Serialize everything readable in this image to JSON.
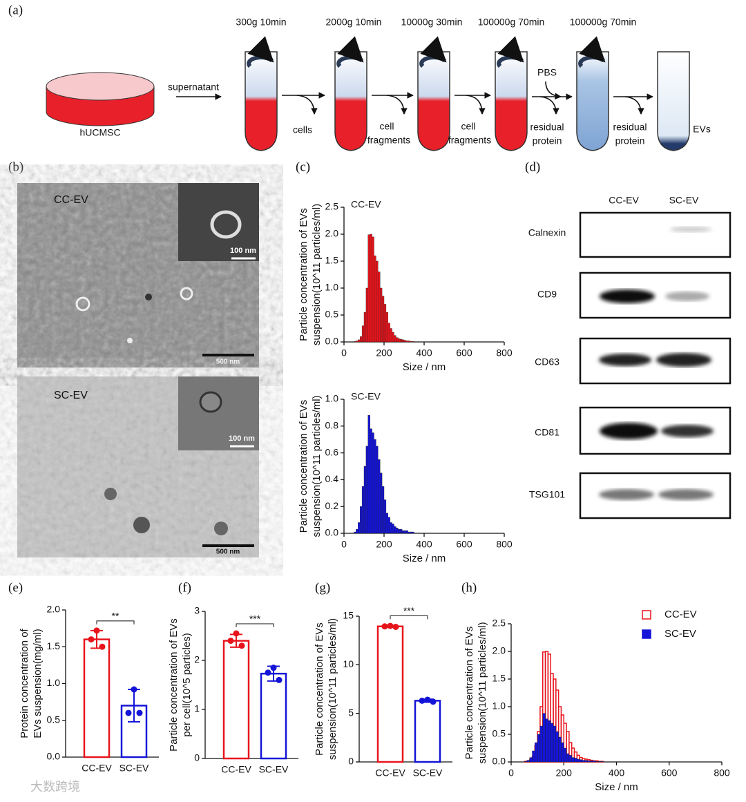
{
  "panel_labels": [
    "(a)",
    "(b)",
    "(c)",
    "(d)",
    "(e)",
    "(f)",
    "(g)",
    "(h)"
  ],
  "diagram": {
    "source": "hUCMSC",
    "transfer": "supernatant",
    "steps": [
      "300g 10min",
      "2000g 10min",
      "10000g 30min",
      "100000g 70min",
      "100000g 70min"
    ],
    "added": "PBS",
    "removed": [
      [
        "cells"
      ],
      [
        "cell",
        "fragments"
      ],
      [
        "cell",
        "fragments"
      ],
      [
        "residual",
        "protein"
      ],
      [
        "residual",
        "protein"
      ]
    ],
    "product": "EVs"
  },
  "tem": [
    {
      "name": "CC-EV",
      "inset_scale": "100 nm",
      "scale": "500 nm"
    },
    {
      "name": "SC-EV",
      "inset_scale": "100 nm",
      "scale": "500 nm"
    }
  ],
  "western_blot": {
    "columns": [
      "CC-EV",
      "SC-EV"
    ],
    "rows": [
      "Calnexin",
      "CD9",
      "CD63",
      "CD81",
      "TSG101"
    ]
  },
  "watermark": "大数跨境",
  "chart_data": [
    {
      "type": "histogram",
      "ylabel": [
        "Particle concentration of EVs",
        "suspension(10^11 particles/ml)"
      ],
      "xlabel": "Size / nm",
      "bins": [
        50,
        60,
        70,
        80,
        90,
        100,
        110,
        120,
        130,
        140,
        150,
        160,
        170,
        180,
        190,
        200,
        210,
        220,
        230,
        240,
        250,
        260,
        270,
        280,
        290,
        300,
        310,
        320,
        330,
        340,
        350
      ],
      "series": [
        {
          "name": "CC-EV",
          "color": "#e8141c",
          "fill": true,
          "values": [
            0.01,
            0.02,
            0.04,
            0.1,
            0.3,
            0.55,
            1.0,
            1.99,
            2.0,
            1.95,
            1.6,
            1.5,
            1.3,
            1.0,
            0.85,
            0.7,
            0.55,
            0.35,
            0.25,
            0.18,
            0.12,
            0.08,
            0.06,
            0.05,
            0.04,
            0.03,
            0.02,
            0.02,
            0.01,
            0.01
          ]
        }
      ],
      "xlim": [
        0,
        800
      ],
      "xticks": [
        0,
        200,
        400,
        600,
        800
      ],
      "ylim": [
        0,
        2.5
      ],
      "yticks": [
        {
          "value": 0,
          "label": "0.0"
        },
        0.5,
        {
          "value": 1,
          "label": "1.0"
        },
        1.5,
        {
          "value": 2,
          "label": "2.0"
        },
        2.5
      ]
    },
    {
      "type": "histogram",
      "ylabel": [
        "Particle concentration of EVs",
        "suspension(10^11 particles/ml)"
      ],
      "xlabel": "Size / nm",
      "bins": [
        50,
        60,
        70,
        80,
        90,
        100,
        110,
        120,
        130,
        140,
        150,
        160,
        170,
        180,
        190,
        200,
        210,
        220,
        230,
        240,
        250,
        260,
        270,
        280,
        290,
        300,
        310,
        320,
        330,
        340,
        350
      ],
      "series": [
        {
          "name": "SC-EV",
          "color": "#1414d8",
          "fill": true,
          "values": [
            0.01,
            0.03,
            0.08,
            0.2,
            0.35,
            0.5,
            0.65,
            0.88,
            0.78,
            0.75,
            0.7,
            0.65,
            0.55,
            0.45,
            0.35,
            0.25,
            0.15,
            0.12,
            0.08,
            0.07,
            0.05,
            0.04,
            0.03,
            0.03,
            0.02,
            0.02,
            0.02,
            0.01,
            0.01,
            0.01
          ]
        }
      ],
      "xlim": [
        0,
        800
      ],
      "xticks": [
        0,
        200,
        400,
        600,
        800
      ],
      "ylim": [
        0,
        1
      ],
      "yticks": [
        {
          "value": 0,
          "label": "0.0"
        },
        0.2,
        0.4,
        0.6,
        0.8,
        {
          "value": 1,
          "label": "1.0"
        }
      ]
    },
    {
      "type": "bar_dot",
      "ylabel": [
        "Protein concentration of",
        "EVs suspension(mg/ml)"
      ],
      "categories": [
        "CC-EV",
        "SC-EV"
      ],
      "colors": [
        "#e8141c",
        "#1414d8"
      ],
      "values": [
        1.6,
        0.7
      ],
      "errors": [
        0.12,
        0.22
      ],
      "points": [
        [
          1.72,
          1.6,
          1.5
        ],
        [
          0.92,
          0.6,
          0.6
        ]
      ],
      "significance": "**",
      "ylim": [
        0,
        2
      ],
      "yticks": [
        {
          "value": 0,
          "label": "0.0"
        },
        0.5,
        {
          "value": 1,
          "label": "1.0"
        },
        1.5,
        {
          "value": 2,
          "label": "2.0"
        }
      ]
    },
    {
      "type": "bar_dot",
      "ylabel": [
        "Particle concentration of EVs",
        "per cell(10^5 particles)"
      ],
      "categories": [
        "CC-EV",
        "SC-EV"
      ],
      "colors": [
        "#e8141c",
        "#1414d8"
      ],
      "values": [
        2.4,
        1.73
      ],
      "errors": [
        0.13,
        0.15
      ],
      "points": [
        [
          2.55,
          2.4,
          2.3
        ],
        [
          1.85,
          1.75,
          1.6
        ]
      ],
      "significance": "***",
      "ylim": [
        0,
        3
      ],
      "yticks": [
        0,
        1,
        2,
        3
      ]
    },
    {
      "type": "bar_dot",
      "ylabel": [
        "Particle concentration of EVs",
        "suspension(10^11 particles/ml)"
      ],
      "categories": [
        "CC-EV",
        "SC-EV"
      ],
      "colors": [
        "#e8141c",
        "#1414d8"
      ],
      "values": [
        13.95,
        6.3
      ],
      "errors": [
        0.1,
        0.15
      ],
      "points": [
        [
          14.0,
          13.95,
          13.9
        ],
        [
          6.4,
          6.3,
          6.2
        ]
      ],
      "significance": "***",
      "ylim": [
        0,
        15
      ],
      "yticks": [
        0,
        5,
        10,
        15
      ]
    },
    {
      "type": "histogram",
      "ylabel": [
        "Particle concentration of EVs",
        "suspension(10^11 particles/ml)"
      ],
      "xlabel": "Size / nm",
      "legend": "upper right",
      "bins": [
        50,
        60,
        70,
        80,
        90,
        100,
        110,
        120,
        130,
        140,
        150,
        160,
        170,
        180,
        190,
        200,
        210,
        220,
        230,
        240,
        250,
        260,
        270,
        280,
        290,
        300,
        310,
        320,
        330,
        340,
        350
      ],
      "series": [
        {
          "name": "CC-EV",
          "color": "#e8141c",
          "fill": false,
          "values": [
            0.01,
            0.02,
            0.04,
            0.1,
            0.3,
            0.55,
            1.0,
            1.99,
            2.0,
            1.95,
            1.6,
            1.5,
            1.3,
            1.0,
            0.85,
            0.7,
            0.55,
            0.35,
            0.25,
            0.18,
            0.12,
            0.08,
            0.06,
            0.05,
            0.04,
            0.03,
            0.02,
            0.02,
            0.01,
            0.01
          ]
        },
        {
          "name": "SC-EV",
          "color": "#1414d8",
          "fill": true,
          "values": [
            0.01,
            0.03,
            0.08,
            0.2,
            0.35,
            0.5,
            0.65,
            0.88,
            0.78,
            0.75,
            0.7,
            0.65,
            0.55,
            0.45,
            0.35,
            0.25,
            0.15,
            0.12,
            0.08,
            0.07,
            0.05,
            0.04,
            0.03,
            0.03,
            0.02,
            0.02,
            0.02,
            0.01,
            0.01,
            0.01
          ]
        }
      ],
      "xlim": [
        0,
        800
      ],
      "xticks": [
        0,
        200,
        400,
        600,
        800
      ],
      "ylim": [
        0,
        2.5
      ],
      "yticks": [
        {
          "value": 0,
          "label": "0.0"
        },
        0.5,
        {
          "value": 1,
          "label": "1.0"
        },
        1.5,
        {
          "value": 2,
          "label": "2.0"
        },
        2.5
      ]
    }
  ]
}
